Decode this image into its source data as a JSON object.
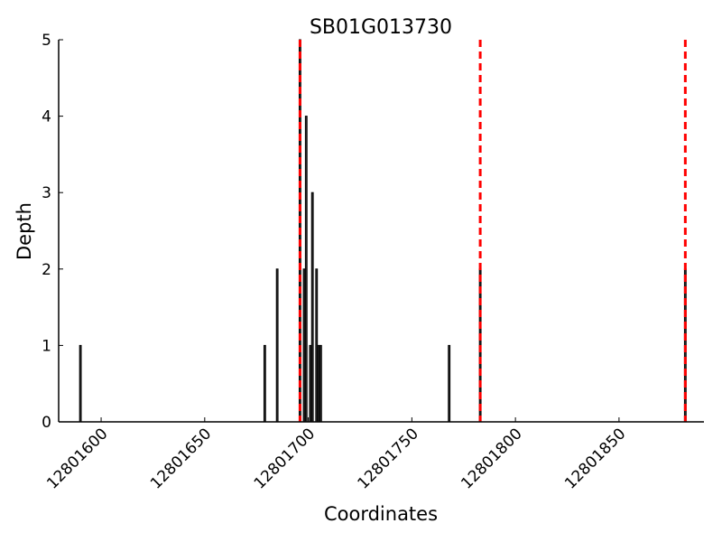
{
  "chart_data": {
    "type": "bar",
    "title": "SB01G013730",
    "x_label": "Coordinates",
    "y_label": "Depth",
    "x": [
      12801590,
      12801679,
      12801685,
      12801696,
      12801698,
      12801699,
      12801701,
      12801702,
      12801704,
      12801705,
      12801706,
      12801768,
      12801783,
      12801882
    ],
    "values": [
      1,
      1,
      2,
      5,
      2,
      4,
      1,
      3,
      2,
      1,
      1,
      1,
      2,
      2
    ],
    "color": "#333333",
    "edge_color": "#000000",
    "vlines": {
      "x": [
        12801696,
        12801783,
        12801882
      ],
      "color": "#ff0000"
    },
    "xlim": [
      12801579.5,
      12801891
    ],
    "ylim": [
      0,
      5
    ],
    "xticks": [
      12801600,
      12801650,
      12801700,
      12801750,
      12801800,
      12801850
    ],
    "yticks": [
      0,
      1,
      2,
      3,
      4,
      5
    ]
  }
}
